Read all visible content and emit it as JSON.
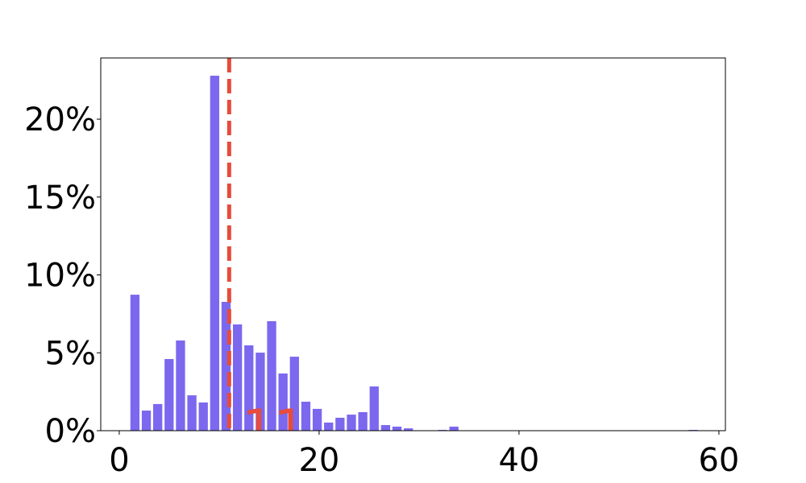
{
  "chart_data": {
    "type": "histogram",
    "bins": [
      1,
      2.14,
      3.28,
      4.42,
      5.56,
      6.7,
      7.84,
      8.98,
      10.12,
      11.26,
      12.4,
      13.54,
      14.68,
      15.82,
      16.96,
      18.1,
      19.24,
      20.38,
      21.52,
      22.66,
      23.8,
      24.94,
      26.08,
      27.22,
      28.36,
      29.5,
      30.64,
      31.78,
      32.92,
      34.06,
      35.2,
      36.34,
      37.48,
      38.62,
      39.76,
      40.9,
      42.04,
      43.18,
      44.32,
      45.46,
      46.6,
      47.74,
      48.88,
      50.02,
      51.16,
      52.3,
      53.44,
      54.58,
      55.72,
      56.86,
      58
    ],
    "values": [
      8.73,
      1.29,
      1.71,
      4.6,
      5.79,
      2.27,
      1.81,
      22.79,
      8.27,
      6.82,
      5.48,
      5.01,
      7.03,
      3.67,
      4.75,
      1.86,
      1.4,
      0.52,
      0.83,
      1.03,
      1.19,
      2.84,
      0.36,
      0.26,
      0.15,
      0,
      0,
      0.05,
      0.26,
      0,
      0,
      0,
      0,
      0,
      0,
      0,
      0,
      0,
      0,
      0,
      0,
      0,
      0,
      0,
      0,
      0,
      0,
      0,
      0,
      0.05
    ],
    "color": "#7b68ee",
    "vline": 11,
    "vline_color": "#e74c3c",
    "xlim": [
      -1.85,
      60.65
    ],
    "xticks": [
      0,
      20,
      40,
      60
    ],
    "ylim": [
      0,
      23.93
    ],
    "yticks": [
      {
        "value": 0,
        "label": "0%"
      },
      {
        "value": 5,
        "label": "5%"
      },
      {
        "value": 10,
        "label": "10%"
      },
      {
        "value": 15,
        "label": "15%"
      },
      {
        "value": 20,
        "label": "20%"
      }
    ],
    "grid": false
  }
}
